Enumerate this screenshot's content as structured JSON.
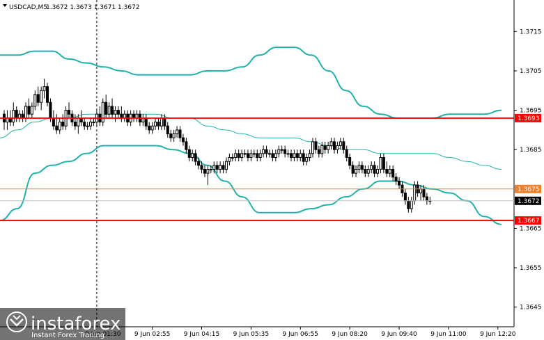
{
  "header": {
    "symbol": "USDCAD,M5",
    "ohlc": "1.3672 1.3673 1.3671 1.3672"
  },
  "colors": {
    "background": "#ffffff",
    "candle": "#000000",
    "bollinger": "#20b2aa",
    "level_line": "#ff0000",
    "level_line_orange": "#f07f2a",
    "current_price_tag": "#000000"
  },
  "watermark": {
    "brand": "instaforex",
    "tagline": "Instant Forex Trading",
    "icon": "instaforex-logo-icon"
  },
  "chart_data": {
    "type": "candlestick",
    "symbol": "USDCAD",
    "timeframe": "M5",
    "ylim": [
      1.364,
      1.3723
    ],
    "y_ticks": [
      {
        "value": 1.3715,
        "label": "1.3715"
      },
      {
        "value": 1.3705,
        "label": "1.3705"
      },
      {
        "value": 1.3695,
        "label": "1.3695"
      },
      {
        "value": 1.3685,
        "label": "1.3685"
      },
      {
        "value": 1.3665,
        "label": "1.3665"
      },
      {
        "value": 1.3655,
        "label": "1.3655"
      },
      {
        "value": 1.3645,
        "label": "1.3645"
      }
    ],
    "x_ticks": [
      {
        "index": 32,
        "label": "9 Jun 01:30"
      },
      {
        "index": 48,
        "label": "9 Jun 02:55"
      },
      {
        "index": 64,
        "label": "9 Jun 04:15"
      },
      {
        "index": 80,
        "label": "9 Jun 05:35"
      },
      {
        "index": 96,
        "label": "9 Jun 06:55"
      },
      {
        "index": 112,
        "label": "9 Jun 08:20"
      },
      {
        "index": 128,
        "label": "9 Jun 09:40"
      },
      {
        "index": 144,
        "label": "9 Jun 11:00"
      },
      {
        "index": 160,
        "label": "9 Jun 12:20"
      }
    ],
    "vertical_marker_index": 30,
    "levels": [
      {
        "value": 1.3693,
        "label": "1.3693",
        "color": "#ff0000",
        "width": 2
      },
      {
        "value": 1.3675,
        "label": "1.3675",
        "color": "#f07f2a",
        "width": 1
      },
      {
        "value": 1.3667,
        "label": "1.3667",
        "color": "#ff0000",
        "width": 2
      }
    ],
    "current_price": {
      "value": 1.3672,
      "label": "1.3672"
    },
    "candles": [
      [
        1.3694,
        1.3695,
        1.369,
        1.3692
      ],
      [
        1.3692,
        1.3695,
        1.369,
        1.3693
      ],
      [
        1.3693,
        1.3695,
        1.3691,
        1.3692
      ],
      [
        1.3692,
        1.3697,
        1.3691,
        1.3695
      ],
      [
        1.3695,
        1.3696,
        1.3692,
        1.3693
      ],
      [
        1.3693,
        1.3695,
        1.3692,
        1.3694
      ],
      [
        1.3694,
        1.3695,
        1.3692,
        1.3693
      ],
      [
        1.3693,
        1.3697,
        1.3692,
        1.3696
      ],
      [
        1.3696,
        1.3698,
        1.3693,
        1.3694
      ],
      [
        1.3694,
        1.3697,
        1.3693,
        1.3696
      ],
      [
        1.3696,
        1.37,
        1.3695,
        1.3699
      ],
      [
        1.3699,
        1.3701,
        1.3696,
        1.3697
      ],
      [
        1.3697,
        1.3701,
        1.3695,
        1.37
      ],
      [
        1.37,
        1.3703,
        1.3698,
        1.3701
      ],
      [
        1.3701,
        1.3702,
        1.3696,
        1.3697
      ],
      [
        1.3697,
        1.3698,
        1.3692,
        1.3693
      ],
      [
        1.3693,
        1.3695,
        1.369,
        1.3691
      ],
      [
        1.3691,
        1.3694,
        1.3689,
        1.369
      ],
      [
        1.369,
        1.3693,
        1.3689,
        1.3692
      ],
      [
        1.3692,
        1.3694,
        1.369,
        1.3691
      ],
      [
        1.3691,
        1.3696,
        1.369,
        1.3695
      ],
      [
        1.3695,
        1.3697,
        1.3693,
        1.3694
      ],
      [
        1.3694,
        1.3695,
        1.3691,
        1.3692
      ],
      [
        1.3692,
        1.3694,
        1.369,
        1.3691
      ],
      [
        1.3691,
        1.3694,
        1.3689,
        1.3693
      ],
      [
        1.3693,
        1.3695,
        1.3691,
        1.3692
      ],
      [
        1.3692,
        1.3693,
        1.369,
        1.3691
      ],
      [
        1.3691,
        1.3692,
        1.369,
        1.3691
      ],
      [
        1.3691,
        1.3693,
        1.369,
        1.3692
      ],
      [
        1.3692,
        1.3693,
        1.3691,
        1.3692
      ],
      [
        1.3692,
        1.3695,
        1.3691,
        1.3694
      ],
      [
        1.3694,
        1.3696,
        1.3691,
        1.3692
      ],
      [
        1.3692,
        1.3698,
        1.3691,
        1.3697
      ],
      [
        1.3697,
        1.3699,
        1.3693,
        1.3694
      ],
      [
        1.3694,
        1.3697,
        1.3693,
        1.3696
      ],
      [
        1.3696,
        1.3698,
        1.3693,
        1.3694
      ],
      [
        1.3694,
        1.3696,
        1.3692,
        1.3695
      ],
      [
        1.3695,
        1.3696,
        1.3693,
        1.3694
      ],
      [
        1.3694,
        1.3696,
        1.3692,
        1.3693
      ],
      [
        1.3693,
        1.3695,
        1.3692,
        1.3694
      ],
      [
        1.3694,
        1.3695,
        1.3691,
        1.3692
      ],
      [
        1.3692,
        1.3695,
        1.3691,
        1.3694
      ],
      [
        1.3694,
        1.3695,
        1.3692,
        1.3693
      ],
      [
        1.3693,
        1.3695,
        1.3692,
        1.3694
      ],
      [
        1.3694,
        1.3695,
        1.3691,
        1.3692
      ],
      [
        1.3692,
        1.3694,
        1.3691,
        1.3693
      ],
      [
        1.3693,
        1.3694,
        1.369,
        1.3691
      ],
      [
        1.3691,
        1.3692,
        1.3689,
        1.369
      ],
      [
        1.369,
        1.3692,
        1.3689,
        1.3691
      ],
      [
        1.3691,
        1.3693,
        1.369,
        1.3692
      ],
      [
        1.3692,
        1.3693,
        1.369,
        1.3691
      ],
      [
        1.3691,
        1.3694,
        1.369,
        1.3693
      ],
      [
        1.3693,
        1.3694,
        1.369,
        1.3691
      ],
      [
        1.3691,
        1.3692,
        1.3688,
        1.3689
      ],
      [
        1.3689,
        1.369,
        1.3687,
        1.3688
      ],
      [
        1.3688,
        1.369,
        1.3687,
        1.3689
      ],
      [
        1.3689,
        1.3691,
        1.3688,
        1.369
      ],
      [
        1.369,
        1.3691,
        1.3687,
        1.3688
      ],
      [
        1.3688,
        1.3689,
        1.3686,
        1.3687
      ],
      [
        1.3687,
        1.3688,
        1.3684,
        1.3685
      ],
      [
        1.3685,
        1.3686,
        1.3682,
        1.3683
      ],
      [
        1.3683,
        1.3685,
        1.3682,
        1.3684
      ],
      [
        1.3684,
        1.3685,
        1.3681,
        1.3682
      ],
      [
        1.3682,
        1.3683,
        1.368,
        1.3681
      ],
      [
        1.3681,
        1.3682,
        1.3679,
        1.368
      ],
      [
        1.368,
        1.3681,
        1.3678,
        1.3679
      ],
      [
        1.3679,
        1.3681,
        1.3676,
        1.368
      ],
      [
        1.368,
        1.3681,
        1.3679,
        1.368
      ],
      [
        1.368,
        1.3682,
        1.3679,
        1.3681
      ],
      [
        1.3681,
        1.3682,
        1.3679,
        1.368
      ],
      [
        1.368,
        1.3682,
        1.3679,
        1.3681
      ],
      [
        1.3681,
        1.3682,
        1.3679,
        1.368
      ],
      [
        1.368,
        1.3683,
        1.3679,
        1.3682
      ],
      [
        1.3682,
        1.3684,
        1.3681,
        1.3683
      ],
      [
        1.3683,
        1.3684,
        1.3682,
        1.3683
      ],
      [
        1.3683,
        1.3685,
        1.3682,
        1.3684
      ],
      [
        1.3684,
        1.3685,
        1.3682,
        1.3683
      ],
      [
        1.3683,
        1.3685,
        1.3682,
        1.3684
      ],
      [
        1.3684,
        1.3685,
        1.3683,
        1.3684
      ],
      [
        1.3684,
        1.3685,
        1.3682,
        1.3683
      ],
      [
        1.3683,
        1.3685,
        1.3682,
        1.3684
      ],
      [
        1.3684,
        1.3685,
        1.3683,
        1.3684
      ],
      [
        1.3684,
        1.3685,
        1.3682,
        1.3683
      ],
      [
        1.3683,
        1.3685,
        1.3682,
        1.3684
      ],
      [
        1.3684,
        1.3686,
        1.3683,
        1.3685
      ],
      [
        1.3685,
        1.3686,
        1.3683,
        1.3684
      ],
      [
        1.3684,
        1.3685,
        1.3683,
        1.3684
      ],
      [
        1.3684,
        1.3685,
        1.3682,
        1.3683
      ],
      [
        1.3683,
        1.3685,
        1.3682,
        1.3684
      ],
      [
        1.3684,
        1.3686,
        1.3683,
        1.3685
      ],
      [
        1.3685,
        1.3686,
        1.3684,
        1.3685
      ],
      [
        1.3685,
        1.3686,
        1.3683,
        1.3684
      ],
      [
        1.3684,
        1.3685,
        1.3683,
        1.3684
      ],
      [
        1.3684,
        1.3685,
        1.3682,
        1.3683
      ],
      [
        1.3683,
        1.3685,
        1.3682,
        1.3684
      ],
      [
        1.3684,
        1.3685,
        1.3682,
        1.3683
      ],
      [
        1.3683,
        1.3685,
        1.3682,
        1.3684
      ],
      [
        1.3684,
        1.3685,
        1.3681,
        1.3682
      ],
      [
        1.3682,
        1.3684,
        1.3681,
        1.3683
      ],
      [
        1.3683,
        1.3685,
        1.3682,
        1.3684
      ],
      [
        1.3684,
        1.3688,
        1.3683,
        1.3687
      ],
      [
        1.3687,
        1.3688,
        1.3684,
        1.3685
      ],
      [
        1.3685,
        1.3686,
        1.3683,
        1.3684
      ],
      [
        1.3684,
        1.3687,
        1.3683,
        1.3686
      ],
      [
        1.3686,
        1.3687,
        1.3684,
        1.3685
      ],
      [
        1.3685,
        1.3687,
        1.3684,
        1.3686
      ],
      [
        1.3686,
        1.3688,
        1.3685,
        1.3687
      ],
      [
        1.3687,
        1.3688,
        1.3684,
        1.3685
      ],
      [
        1.3685,
        1.3687,
        1.3684,
        1.3686
      ],
      [
        1.3686,
        1.3688,
        1.3685,
        1.3687
      ],
      [
        1.3687,
        1.3688,
        1.3684,
        1.3685
      ],
      [
        1.3685,
        1.3686,
        1.3682,
        1.3683
      ],
      [
        1.3683,
        1.3684,
        1.368,
        1.3681
      ],
      [
        1.3681,
        1.3682,
        1.3678,
        1.3679
      ],
      [
        1.3679,
        1.3681,
        1.3678,
        1.368
      ],
      [
        1.368,
        1.3682,
        1.3679,
        1.3681
      ],
      [
        1.3681,
        1.3682,
        1.3679,
        1.368
      ],
      [
        1.368,
        1.3681,
        1.3678,
        1.3679
      ],
      [
        1.3679,
        1.3681,
        1.3678,
        1.368
      ],
      [
        1.368,
        1.3682,
        1.3679,
        1.3681
      ],
      [
        1.3681,
        1.3682,
        1.3678,
        1.3679
      ],
      [
        1.3679,
        1.3681,
        1.3678,
        1.368
      ],
      [
        1.368,
        1.3684,
        1.3679,
        1.3683
      ],
      [
        1.3683,
        1.3684,
        1.3679,
        1.368
      ],
      [
        1.368,
        1.3682,
        1.3678,
        1.3679
      ],
      [
        1.3679,
        1.3681,
        1.3678,
        1.368
      ],
      [
        1.368,
        1.3681,
        1.3677,
        1.3678
      ],
      [
        1.3678,
        1.3679,
        1.3676,
        1.3677
      ],
      [
        1.3677,
        1.3678,
        1.3675,
        1.3676
      ],
      [
        1.3676,
        1.3677,
        1.3673,
        1.3674
      ],
      [
        1.3674,
        1.3675,
        1.3671,
        1.3672
      ],
      [
        1.3672,
        1.3673,
        1.3669,
        1.367
      ],
      [
        1.367,
        1.3673,
        1.3669,
        1.3672
      ],
      [
        1.3672,
        1.3677,
        1.3671,
        1.3676
      ],
      [
        1.3676,
        1.3677,
        1.3673,
        1.3674
      ],
      [
        1.3674,
        1.3676,
        1.3672,
        1.3675
      ],
      [
        1.3675,
        1.3676,
        1.3672,
        1.3673
      ],
      [
        1.3673,
        1.3674,
        1.3671,
        1.3672
      ],
      [
        1.3672,
        1.3673,
        1.3671,
        1.3672
      ]
    ],
    "bollinger": {
      "upper": [
        1.3709,
        1.3709,
        1.371,
        1.371,
        1.3708,
        1.3707,
        1.3706,
        1.3705,
        1.3704,
        1.3704,
        1.3704,
        1.3704,
        1.3705,
        1.3705,
        1.3706,
        1.3709,
        1.3711,
        1.3711,
        1.3709,
        1.3705,
        1.37,
        1.3696,
        1.3694,
        1.3693,
        1.3693,
        1.3693,
        1.3694,
        1.3694,
        1.3694,
        1.3695
      ],
      "middle": [
        1.3688,
        1.369,
        1.3692,
        1.3693,
        1.3693,
        1.3694,
        1.3694,
        1.3694,
        1.3694,
        1.3694,
        1.3693,
        1.3693,
        1.3691,
        1.369,
        1.3689,
        1.3688,
        1.3688,
        1.3688,
        1.3687,
        1.3686,
        1.3685,
        1.3685,
        1.3684,
        1.3684,
        1.3684,
        1.3684,
        1.3683,
        1.3682,
        1.3681,
        1.368
      ],
      "lower": [
        1.3667,
        1.367,
        1.3679,
        1.3681,
        1.3682,
        1.3684,
        1.3686,
        1.3686,
        1.3686,
        1.3686,
        1.3685,
        1.3684,
        1.3681,
        1.3677,
        1.3673,
        1.3669,
        1.3669,
        1.3669,
        1.367,
        1.3671,
        1.3673,
        1.3675,
        1.3677,
        1.3677,
        1.3676,
        1.3675,
        1.3674,
        1.3672,
        1.3668,
        1.3666
      ]
    }
  }
}
